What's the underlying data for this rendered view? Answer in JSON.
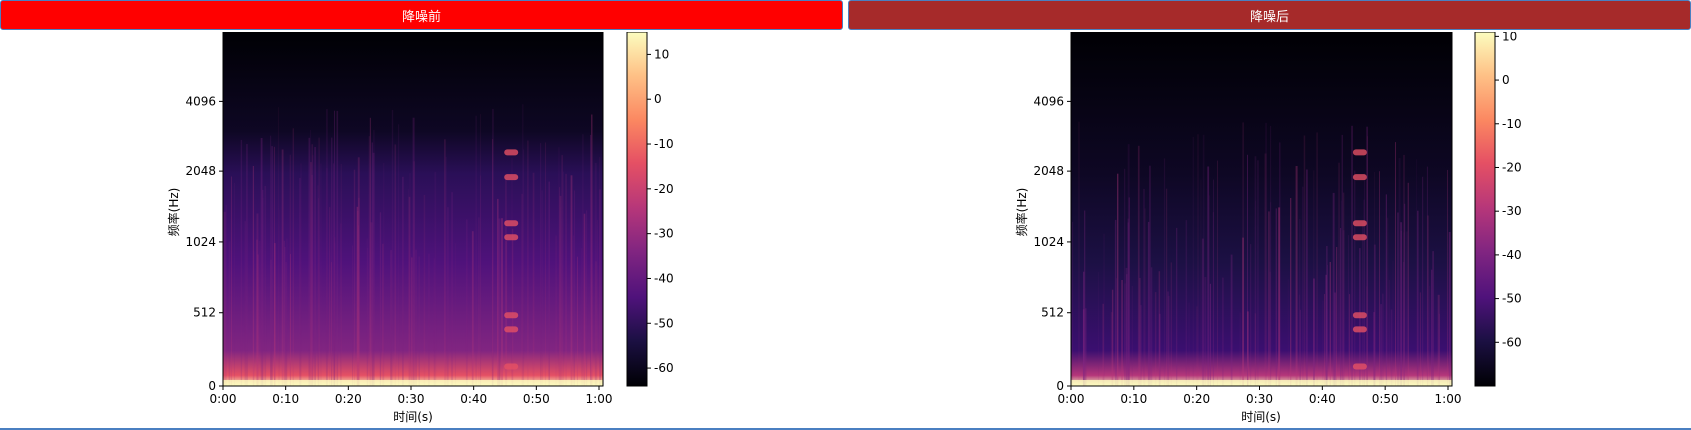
{
  "tabs": {
    "before_label": "降噪前",
    "after_label": "降噪后",
    "before_color": "#ff0000",
    "after_color": "#a62a2a"
  },
  "chart_data": [
    {
      "type": "heatmap",
      "colormap": "magma",
      "xlabel": "时间(s)",
      "ylabel": "频率(Hz)",
      "x_ticks": [
        "0:00",
        "0:10",
        "0:20",
        "0:30",
        "0:40",
        "0:50",
        "1:00"
      ],
      "y_ticks": [
        "0",
        "512",
        "1024",
        "2048",
        "4096"
      ],
      "colorbar_ticks": [
        "10",
        "0",
        "-10",
        "-20",
        "-30",
        "-40",
        "-50",
        "-60"
      ],
      "colorbar_range": [
        -64,
        15
      ]
    },
    {
      "type": "heatmap",
      "colormap": "magma",
      "xlabel": "时间(s)",
      "ylabel": "频率(Hz)",
      "x_ticks": [
        "0:00",
        "0:10",
        "0:20",
        "0:30",
        "0:40",
        "0:50",
        "1:00"
      ],
      "y_ticks": [
        "0",
        "512",
        "1024",
        "2048",
        "4096"
      ],
      "colorbar_ticks": [
        "10",
        "0",
        "-10",
        "-20",
        "-30",
        "-40",
        "-50",
        "-60"
      ],
      "colorbar_range": [
        -70,
        11
      ]
    }
  ]
}
